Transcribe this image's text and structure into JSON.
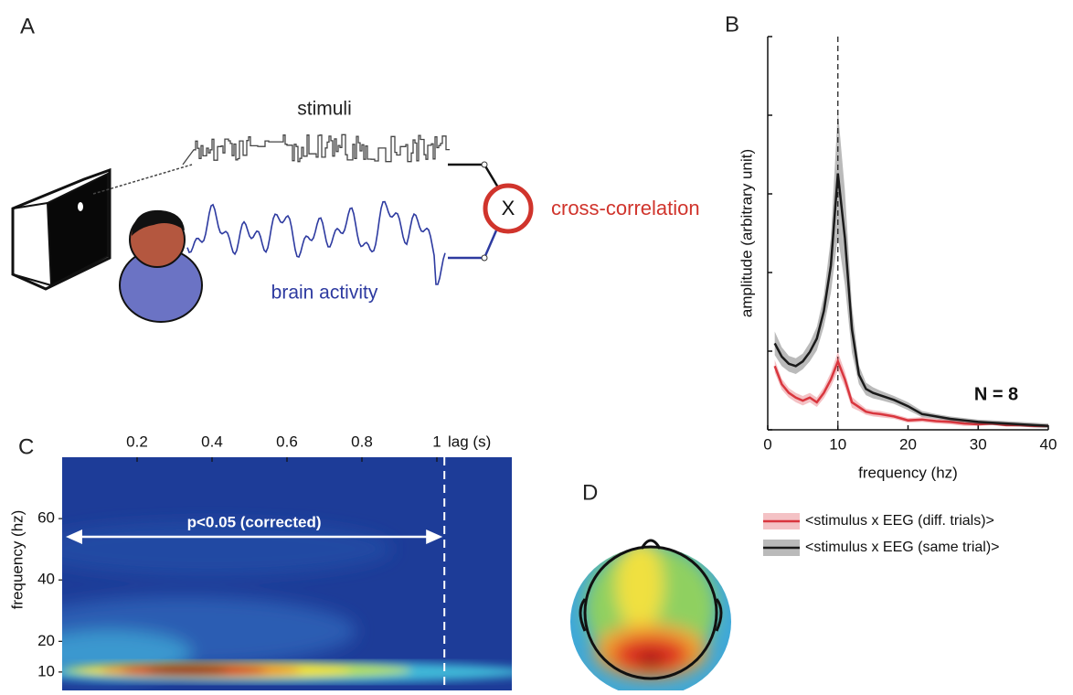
{
  "panel_a": {
    "label": "A",
    "stimulus_label": "stimuli",
    "brain_label": "brain activity",
    "operator": "X",
    "output_label": "cross-correlation"
  },
  "panel_d": {
    "label": "D"
  },
  "chart_data": [
    {
      "type": "line",
      "label": "B",
      "xlabel": "frequency (hz)",
      "ylabel": "amplitude (arbitrary unit)",
      "annotation": "N = 8",
      "vline": 10,
      "x": [
        1,
        2,
        3,
        4,
        5,
        6,
        7,
        8,
        9,
        10,
        11,
        12,
        13,
        14,
        15,
        16,
        18,
        20,
        22,
        24,
        26,
        28,
        30,
        32,
        34,
        36,
        38,
        40
      ],
      "xlim": [
        0,
        40
      ],
      "xticks": [
        0,
        10,
        20,
        30,
        40
      ],
      "ylim": [
        0,
        5
      ],
      "yticks": [
        0,
        1,
        2,
        3,
        4,
        5
      ],
      "series": [
        {
          "name": "<stimulus x EEG (diff. trials)>",
          "color": "#d9363e",
          "values": [
            0.81,
            0.58,
            0.47,
            0.41,
            0.37,
            0.41,
            0.35,
            0.47,
            0.64,
            0.87,
            0.64,
            0.35,
            0.29,
            0.23,
            0.21,
            0.2,
            0.17,
            0.12,
            0.13,
            0.11,
            0.1,
            0.08,
            0.07,
            0.08,
            0.06,
            0.06,
            0.05,
            0.05
          ],
          "errors": [
            0.08,
            0.07,
            0.06,
            0.06,
            0.06,
            0.06,
            0.06,
            0.07,
            0.09,
            0.12,
            0.1,
            0.07,
            0.05,
            0.04,
            0.04,
            0.04,
            0.03,
            0.03,
            0.03,
            0.03,
            0.03,
            0.03,
            0.02,
            0.02,
            0.02,
            0.02,
            0.02,
            0.02
          ]
        },
        {
          "name": "<stimulus x EEG (same trial)>",
          "color": "#1a1a1a",
          "values": [
            1.1,
            0.93,
            0.84,
            0.81,
            0.87,
            0.99,
            1.16,
            1.51,
            2.09,
            3.26,
            2.44,
            1.28,
            0.7,
            0.52,
            0.47,
            0.44,
            0.38,
            0.3,
            0.2,
            0.17,
            0.14,
            0.12,
            0.1,
            0.09,
            0.08,
            0.07,
            0.06,
            0.05
          ],
          "errors": [
            0.15,
            0.12,
            0.1,
            0.1,
            0.1,
            0.12,
            0.15,
            0.2,
            0.35,
            0.8,
            0.6,
            0.3,
            0.12,
            0.08,
            0.07,
            0.06,
            0.05,
            0.05,
            0.04,
            0.03,
            0.03,
            0.03,
            0.03,
            0.03,
            0.03,
            0.03,
            0.03,
            0.03
          ]
        }
      ]
    },
    {
      "type": "heatmap",
      "label": "C",
      "xlabel": "lag (s)",
      "ylabel": "frequency (hz)",
      "xlim": [
        0,
        1.2
      ],
      "xticks": [
        0.2,
        0.4,
        0.6,
        0.8,
        1
      ],
      "ylim": [
        4,
        80
      ],
      "yticks": [
        10,
        20,
        40,
        60
      ],
      "annotation": {
        "text": "p<0.05 (corrected)",
        "span": [
          0,
          1.02
        ]
      },
      "vline": 1.02
    }
  ]
}
